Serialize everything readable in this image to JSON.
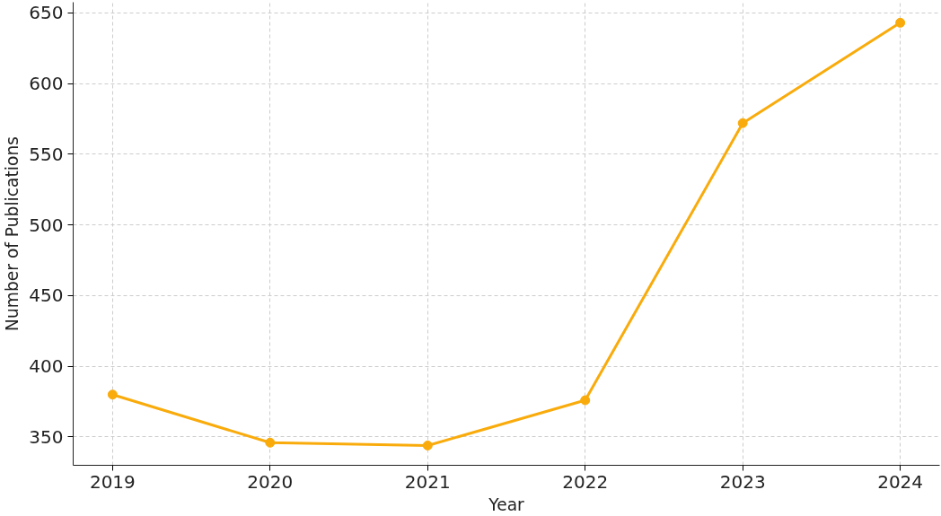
{
  "chart_data": {
    "type": "line",
    "xlabel": "Year",
    "ylabel": "Number of Publications",
    "x": [
      2019,
      2020,
      2021,
      2022,
      2023,
      2024
    ],
    "series": [
      {
        "color": "#f9ab0b",
        "values": [
          380,
          346,
          344,
          376,
          572,
          643
        ]
      }
    ],
    "xlim": [
      2018.75,
      2024.25
    ],
    "xticks": [
      2019,
      2020,
      2021,
      2022,
      2023,
      2024
    ],
    "ylim": [
      330,
      657.5
    ],
    "yticks": [
      350,
      400,
      450,
      500,
      550,
      600,
      650
    ],
    "grid": true,
    "marker": "circle",
    "line_style": "solid"
  }
}
